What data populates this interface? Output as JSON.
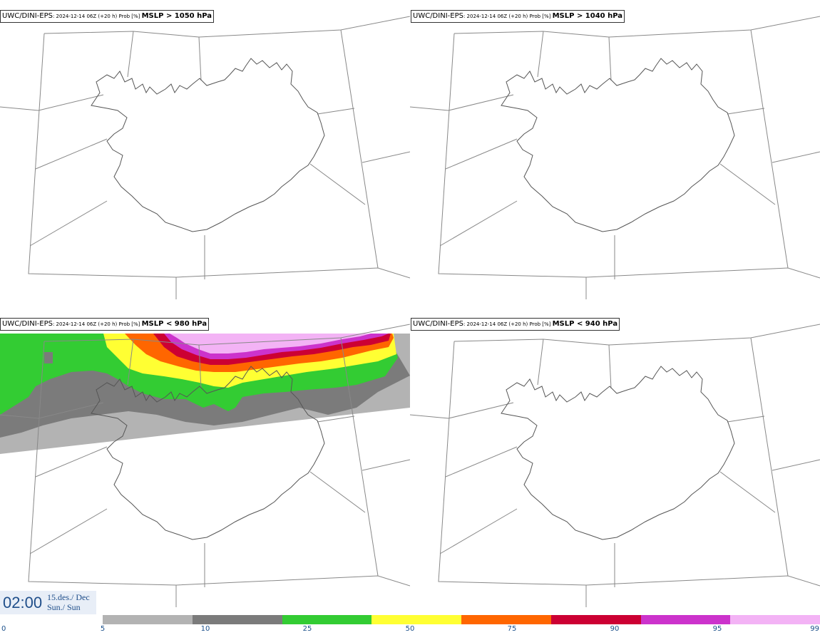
{
  "panels": [
    {
      "model": "UWC/DINI-EPS",
      "meta": ": 2024-12-14 06Z (+20 h) Prob [%] ",
      "param": "MSLP > 1050 hPa"
    },
    {
      "model": "UWC/DINI-EPS",
      "meta": ": 2024-12-14 06Z (+20 h) Prob [%] ",
      "param": "MSLP > 1040 hPa"
    },
    {
      "model": "UWC/DINI-EPS",
      "meta": ": 2024-12-14 06Z (+20 h) Prob [%] ",
      "param": "MSLP < 980 hPa"
    },
    {
      "model": "UWC/DINI-EPS",
      "meta": ": 2024-12-14 06Z (+20 h) Prob [%] ",
      "param": "MSLP < 940 hPa"
    }
  ],
  "time": {
    "clock": "02:00",
    "date_line1": "15.des./ Dec",
    "date_line2": "Sun./ Sun"
  },
  "legend": {
    "ticks": [
      "0",
      "5",
      "10",
      "25",
      "50",
      "75",
      "90",
      "95",
      "99"
    ],
    "colors": [
      "#b3b3b3",
      "#7b7b7b",
      "#33cc33",
      "#ffff33",
      "#ff6600",
      "#cc0033",
      "#cc33cc",
      "#f3b3f5"
    ]
  }
}
